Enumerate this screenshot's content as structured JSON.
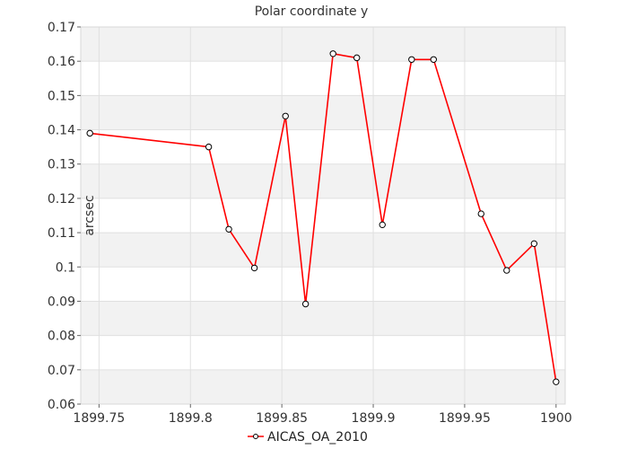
{
  "chart_data": {
    "type": "line",
    "title": "Polar coordinate y",
    "xlabel": "",
    "ylabel": "arcsec",
    "xlim": [
      1899.74,
      1900.005
    ],
    "ylim": [
      0.06,
      0.17
    ],
    "x_ticks": [
      1899.75,
      1899.8,
      1899.85,
      1899.9,
      1899.95,
      1900
    ],
    "x_tick_labels": [
      "1899.75",
      "1899.8",
      "1899.85",
      "1899.9",
      "1899.95",
      "1900"
    ],
    "y_ticks": [
      0.06,
      0.07,
      0.08,
      0.09,
      0.1,
      0.11,
      0.12,
      0.13,
      0.14,
      0.15,
      0.16,
      0.17
    ],
    "y_tick_labels": [
      "0.06",
      "0.07",
      "0.08",
      "0.09",
      "0.1",
      "0.11",
      "0.12",
      "0.13",
      "0.14",
      "0.15",
      "0.16",
      "0.17"
    ],
    "grid": true,
    "legend_position": "bottom",
    "series": [
      {
        "name": "AICAS_OA_2010",
        "color": "#ff0000",
        "x": [
          1899.745,
          1899.81,
          1899.821,
          1899.835,
          1899.852,
          1899.863,
          1899.878,
          1899.891,
          1899.905,
          1899.921,
          1899.933,
          1899.959,
          1899.973,
          1899.988,
          1900.0
        ],
        "y": [
          0.139,
          0.135,
          0.111,
          0.0997,
          0.144,
          0.0892,
          0.1622,
          0.161,
          0.1123,
          0.1605,
          0.1605,
          0.1155,
          0.099,
          0.1068,
          0.0665
        ]
      }
    ]
  }
}
